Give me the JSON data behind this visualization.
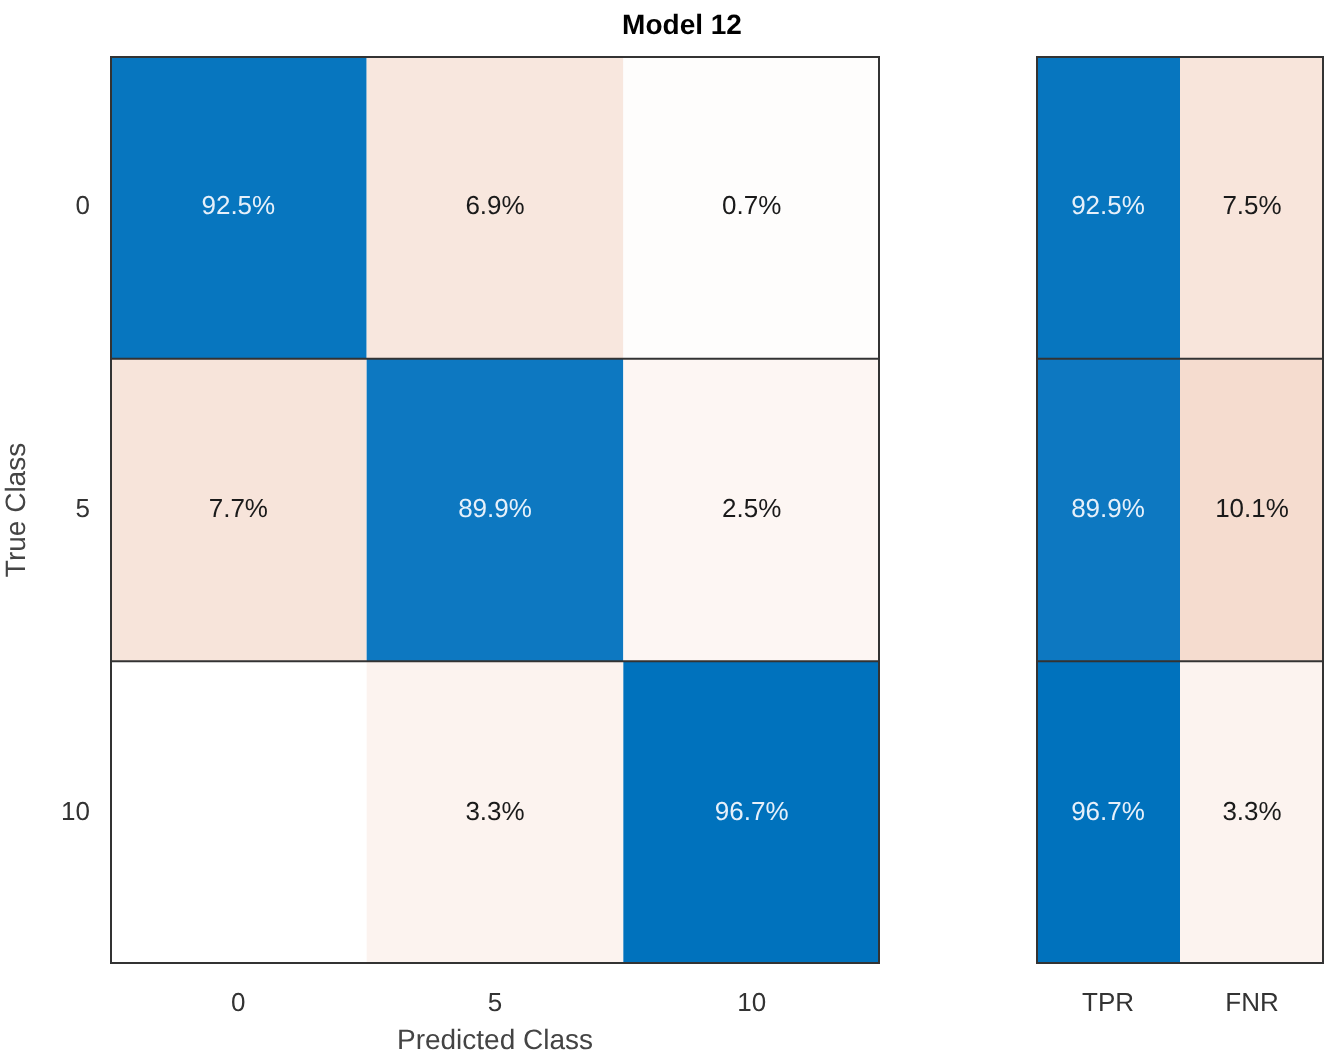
{
  "chart_data": [
    {
      "type": "heatmap",
      "title": "Model 12",
      "xlabel": "Predicted Class",
      "ylabel": "True Class",
      "categories": [
        "0",
        "5",
        "10"
      ],
      "y_categories": [
        "0",
        "5",
        "10"
      ],
      "cells": [
        [
          92.5,
          6.9,
          0.7
        ],
        [
          7.7,
          89.9,
          2.5
        ],
        [
          null,
          3.3,
          96.7
        ]
      ],
      "cell_labels": [
        [
          "92.5%",
          "6.9%",
          "0.7%"
        ],
        [
          "7.7%",
          "89.9%",
          "2.5%"
        ],
        [
          null,
          "3.3%",
          "96.7%"
        ]
      ],
      "grid": false
    },
    {
      "type": "heatmap",
      "categories": [
        "TPR",
        "FNR"
      ],
      "y_categories": [
        "0",
        "5",
        "10"
      ],
      "tick_labels": "x",
      "cells": [
        [
          92.5,
          7.5
        ],
        [
          89.9,
          10.1
        ],
        [
          96.7,
          3.3
        ]
      ],
      "cell_labels": [
        [
          "92.5%",
          "7.5%"
        ],
        [
          "89.9%",
          "10.1%"
        ],
        [
          "96.7%",
          "3.3%"
        ]
      ],
      "grid": false
    }
  ]
}
